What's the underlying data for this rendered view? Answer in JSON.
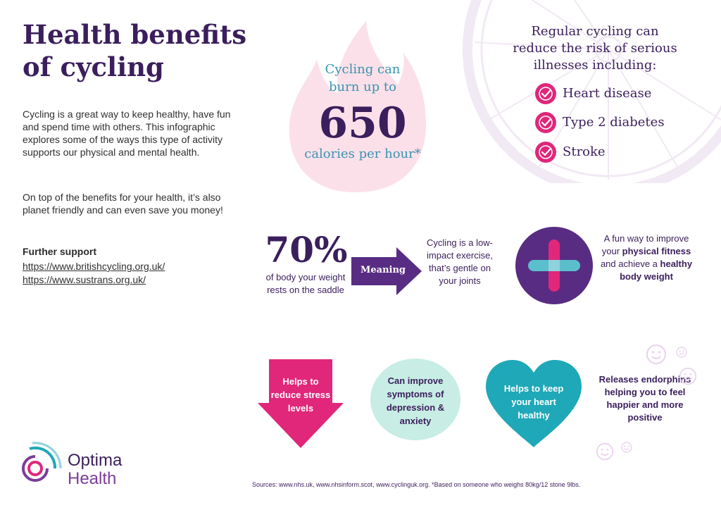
{
  "header": {
    "title_line1": "Health benefits",
    "title_line2": "of cycling"
  },
  "intro": {
    "paragraph1": "Cycling is a great way to keep healthy, have fun and spend time with others. This infographic explores some of the ways this type of activity supports our physical and mental health.",
    "paragraph2": "On top of the benefits for your health, it’s also planet friendly and can even save you money!"
  },
  "support": {
    "heading": "Further support",
    "links": [
      "https://www.britishcycling.org.uk/",
      "https://www.sustrans.org.uk/"
    ]
  },
  "calories": {
    "line1": "Cycling can",
    "line2": "burn up to",
    "number": "650",
    "line3": "calories per hour*"
  },
  "illnesses": {
    "heading_line1": "Regular cycling can",
    "heading_line2": "reduce the risk of serious",
    "heading_line3": "illnesses including:",
    "items": [
      "Heart disease",
      "Type 2 diabetes",
      "Stroke"
    ]
  },
  "saddle": {
    "percent": "70%",
    "description": "of body your weight rests on the saddle",
    "arrow_label": "Meaning",
    "result": "Cycling is a low-impact exercise, that’s gentle on your joints"
  },
  "fitness": {
    "text_before": "A fun way to improve your ",
    "bold1": "physical fitness",
    "text_middle": " and achieve a ",
    "bold2": "healthy body weight"
  },
  "benefits": {
    "stress": "Helps to reduce stress levels",
    "depression": "Can improve symptoms of depression & anxiety",
    "heart": "Helps to keep your heart healthy",
    "endorphins": "Releases endorphins helping you to feel happier and more positive"
  },
  "logo": {
    "line1": "Optima",
    "line2": "Health"
  },
  "footer": {
    "sources": "Sources: www.nhs.uk, www.nhsinform.scot, www.cyclinguk.org. *Based on someone who weighs 80kg/12 stone 9lbs."
  },
  "icons": {
    "check": "check-icon",
    "plus": "plus-icon",
    "smiley": "smiley-icon",
    "flame": "flame-icon",
    "wheel": "bicycle-wheel-icon"
  },
  "colors": {
    "purple_dark": "#3b1e5c",
    "purple": "#582c83",
    "pink": "#e0277a",
    "teal": "#1fa8b8",
    "mint": "#c7ede4",
    "flame_pink": "#fbe0ea",
    "light_text_teal": "#3a94b0"
  }
}
